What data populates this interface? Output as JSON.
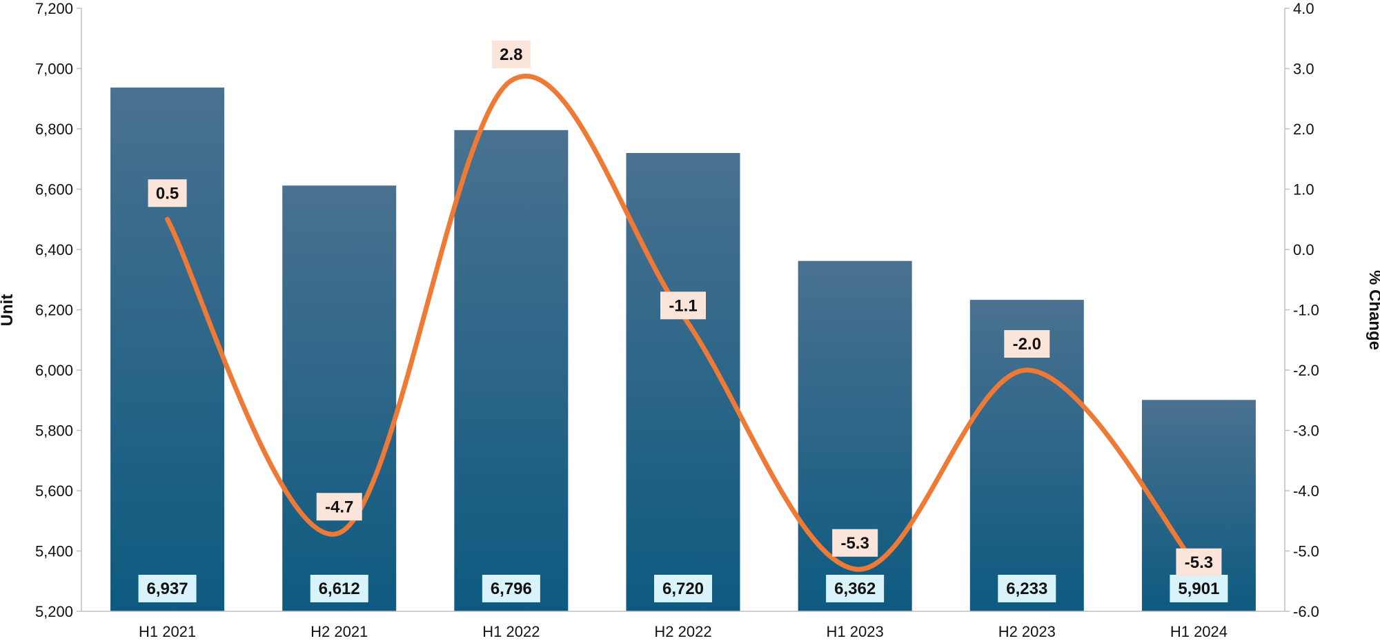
{
  "chart_data": {
    "type": "bar",
    "categories": [
      "H1 2021",
      "H2 2021",
      "H1 2022",
      "H2 2022",
      "H1 2023",
      "H2 2023",
      "H1 2024"
    ],
    "series": [
      {
        "type": "bar",
        "axis": "left",
        "values": [
          6937,
          6612,
          6796,
          6720,
          6362,
          6233,
          5901
        ]
      },
      {
        "type": "line",
        "axis": "right",
        "values": [
          0.5,
          -4.7,
          2.8,
          -1.1,
          -5.3,
          -2.0,
          -5.3
        ]
      }
    ],
    "bar_labels": [
      "6,937",
      "6,612",
      "6,796",
      "6,720",
      "6,362",
      "6,233",
      "5,901"
    ],
    "line_labels": [
      "0.5",
      "-4.7",
      "2.8",
      "-1.1",
      "-5.3",
      "-2.0",
      "-5.3"
    ],
    "ylabel": "Unit",
    "y2label": "% Change",
    "ylim": [
      5200,
      7200
    ],
    "y2lim": [
      -6.0,
      4.0
    ],
    "yticks": [
      "5,200",
      "5,400",
      "5,600",
      "5,800",
      "6,000",
      "6,200",
      "6,400",
      "6,600",
      "6,800",
      "7,000",
      "7,200"
    ],
    "y2ticks": [
      "-6.0",
      "-5.0",
      "-4.0",
      "-3.0",
      "-2.0",
      "-1.0",
      "0.0",
      "1.0",
      "2.0",
      "3.0",
      "4.0"
    ],
    "grid": false,
    "legend": "none",
    "colors": {
      "bar_top": "#4a7190",
      "bar_bottom": "#0d5a80",
      "line": "#ef7a35",
      "bar_label_bg": "#d9f3fb",
      "line_label_bg": "#fbe4da"
    }
  }
}
